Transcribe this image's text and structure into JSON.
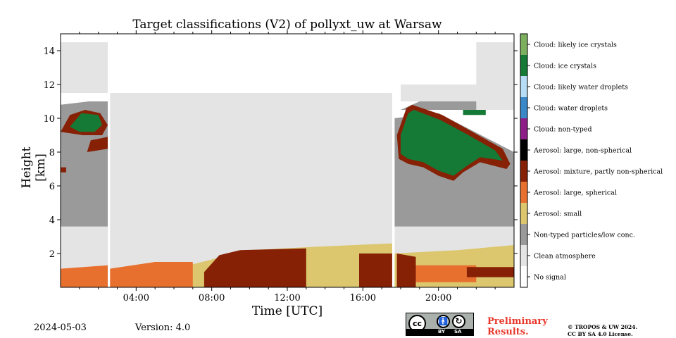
{
  "chart_data": {
    "type": "heatmap",
    "title": "Target classifications (V2) of pollyxt_uw at Warsaw",
    "xlabel": "Time [UTC]",
    "ylabel": "Height [km]",
    "x_unit": "hours UTC",
    "xlim": [
      0,
      24
    ],
    "ylim": [
      0,
      15
    ],
    "xticks": [
      {
        "value": 4,
        "label": "04:00"
      },
      {
        "value": 8,
        "label": "08:00"
      },
      {
        "value": 12,
        "label": "12:00"
      },
      {
        "value": 16,
        "label": "16:00"
      },
      {
        "value": 20,
        "label": "20:00"
      }
    ],
    "yticks": [
      2,
      4,
      6,
      8,
      10,
      12,
      14
    ],
    "grid": false,
    "legend_placement": "right colorbar",
    "classes": [
      {
        "label": "No signal",
        "color": "#ffffff"
      },
      {
        "label": "Clean atmosphere",
        "color": "#e4e4e4"
      },
      {
        "label": "Non-typed particles/low conc.",
        "color": "#9a9a9a"
      },
      {
        "label": "Aerosol: small",
        "color": "#dcc76f"
      },
      {
        "label": "Aerosol: large, spherical",
        "color": "#e8702f"
      },
      {
        "label": "Aerosol: mixture, partly non-spherical",
        "color": "#862106"
      },
      {
        "label": "Aerosol: large, non-spherical",
        "color": "#000000"
      },
      {
        "label": "Cloud: non-typed",
        "color": "#8e1e87"
      },
      {
        "label": "Cloud: water droplets",
        "color": "#3a88c8"
      },
      {
        "label": "Cloud: likely water droplets",
        "color": "#b7dcf5"
      },
      {
        "label": "Cloud: ice crystals",
        "color": "#157a35"
      },
      {
        "label": "Cloud: likely ice crystals",
        "color": "#7cb05e"
      }
    ],
    "regions": [
      {
        "class": "Non-typed particles/low conc.",
        "points": [
          [
            0,
            0.3
          ],
          [
            24,
            0.3
          ],
          [
            24,
            8
          ],
          [
            20,
            10.3
          ],
          [
            17.6,
            10
          ],
          [
            17.6,
            0.3
          ]
        ]
      },
      {
        "class": "Non-typed particles/low conc.",
        "points": [
          [
            0,
            0.3
          ],
          [
            2.5,
            0.3
          ],
          [
            2.5,
            11
          ],
          [
            1.5,
            11
          ],
          [
            0,
            10.8
          ]
        ]
      },
      {
        "class": "Non-typed particles/low conc.",
        "points": [
          [
            2.6,
            3.5
          ],
          [
            4,
            3.5
          ],
          [
            3.4,
            5
          ],
          [
            2.6,
            7
          ]
        ]
      },
      {
        "class": "Non-typed particles/low conc.",
        "points": [
          [
            18,
            10.5
          ],
          [
            24,
            10.5
          ],
          [
            24,
            11
          ],
          [
            19,
            11
          ]
        ]
      },
      {
        "class": "Clean atmosphere",
        "points": [
          [
            0,
            2.0
          ],
          [
            24,
            2.0
          ],
          [
            24,
            3.6
          ],
          [
            0,
            3.6
          ]
        ]
      },
      {
        "class": "Clean atmosphere",
        "points": [
          [
            0,
            0.8
          ],
          [
            24,
            0.8
          ],
          [
            24,
            2.6
          ],
          [
            0,
            2.6
          ]
        ]
      },
      {
        "class": "Clean atmosphere",
        "points": [
          [
            2.6,
            3.5
          ],
          [
            17.6,
            3.5
          ],
          [
            17.6,
            11.5
          ],
          [
            2.6,
            11.5
          ]
        ]
      },
      {
        "class": "Clean atmosphere",
        "points": [
          [
            0,
            11.5
          ],
          [
            2.5,
            11.5
          ],
          [
            2.5,
            14.5
          ],
          [
            0,
            14.5
          ]
        ]
      },
      {
        "class": "Clean atmosphere",
        "points": [
          [
            18,
            11
          ],
          [
            22,
            11
          ],
          [
            22,
            12
          ],
          [
            18,
            12
          ]
        ]
      },
      {
        "class": "Clean atmosphere",
        "points": [
          [
            22,
            10.5
          ],
          [
            24,
            10.5
          ],
          [
            24,
            14.5
          ],
          [
            22,
            14.5
          ]
        ]
      },
      {
        "class": "Aerosol: small",
        "points": [
          [
            6.4,
            0
          ],
          [
            17.6,
            0
          ],
          [
            17.6,
            2.6
          ],
          [
            13.5,
            2.4
          ],
          [
            10,
            2.2
          ],
          [
            6.4,
            1.2
          ]
        ]
      },
      {
        "class": "Aerosol: small",
        "points": [
          [
            17.6,
            0
          ],
          [
            24,
            0
          ],
          [
            24,
            2.5
          ],
          [
            21,
            2.2
          ],
          [
            17.6,
            2.0
          ]
        ]
      },
      {
        "class": "Aerosol: large, spherical",
        "points": [
          [
            0,
            0
          ],
          [
            2.5,
            0
          ],
          [
            2.5,
            1.3
          ],
          [
            1.2,
            1.2
          ],
          [
            0,
            1.1
          ]
        ]
      },
      {
        "class": "Aerosol: large, spherical",
        "points": [
          [
            2.6,
            0
          ],
          [
            7.0,
            0
          ],
          [
            7.0,
            1.5
          ],
          [
            5,
            1.5
          ],
          [
            2.6,
            1.1
          ]
        ]
      },
      {
        "class": "Aerosol: large, spherical",
        "points": [
          [
            18.5,
            0.3
          ],
          [
            22,
            0.3
          ],
          [
            22,
            1.3
          ],
          [
            18.5,
            1.3
          ]
        ]
      },
      {
        "class": "Aerosol: mixture, partly non-spherical",
        "points": [
          [
            7.6,
            0
          ],
          [
            13.0,
            0
          ],
          [
            13.0,
            2.3
          ],
          [
            9.5,
            2.2
          ],
          [
            8.4,
            1.9
          ],
          [
            7.6,
            0.9
          ]
        ]
      },
      {
        "class": "Aerosol: mixture, partly non-spherical",
        "points": [
          [
            15.8,
            0
          ],
          [
            17.6,
            0
          ],
          [
            17.6,
            2.0
          ],
          [
            15.8,
            2.0
          ]
        ]
      },
      {
        "class": "Aerosol: mixture, partly non-spherical",
        "points": [
          [
            17.8,
            0
          ],
          [
            18.8,
            0
          ],
          [
            18.8,
            1.8
          ],
          [
            17.8,
            2.0
          ]
        ]
      },
      {
        "class": "Aerosol: mixture, partly non-spherical",
        "points": [
          [
            21.5,
            0.6
          ],
          [
            24,
            0.6
          ],
          [
            24,
            1.2
          ],
          [
            21.5,
            1.2
          ]
        ]
      },
      {
        "class": "Aerosol: mixture, partly non-spherical",
        "points": [
          [
            0,
            9.2
          ],
          [
            0.5,
            10.2
          ],
          [
            1.3,
            10.5
          ],
          [
            2.1,
            10.3
          ],
          [
            2.5,
            9.6
          ],
          [
            2.2,
            9.0
          ],
          [
            1.2,
            9.0
          ]
        ]
      },
      {
        "class": "Aerosol: mixture, partly non-spherical",
        "points": [
          [
            1.4,
            8.0
          ],
          [
            2.5,
            8.2
          ],
          [
            2.5,
            8.9
          ],
          [
            1.6,
            8.7
          ]
        ]
      },
      {
        "class": "Aerosol: mixture, partly non-spherical",
        "points": [
          [
            0,
            6.8
          ],
          [
            0.3,
            6.8
          ],
          [
            0.3,
            7.1
          ],
          [
            0,
            7.1
          ]
        ]
      },
      {
        "class": "Aerosol: mixture, partly non-spherical",
        "points": [
          [
            18.6,
            10.8
          ],
          [
            20.2,
            10.2
          ],
          [
            21.8,
            9.2
          ],
          [
            23.4,
            8.2
          ],
          [
            23.8,
            7.3
          ],
          [
            23.6,
            7.0
          ],
          [
            22.2,
            7.4
          ],
          [
            21.3,
            6.8
          ],
          [
            20.8,
            6.3
          ],
          [
            20,
            6.6
          ],
          [
            19.2,
            7.1
          ],
          [
            18.4,
            7.3
          ],
          [
            17.9,
            7.6
          ],
          [
            17.8,
            9.0
          ],
          [
            18.3,
            10.6
          ]
        ]
      },
      {
        "class": "Cloud: ice crystals",
        "points": [
          [
            18.7,
            10.5
          ],
          [
            20.1,
            9.9
          ],
          [
            21.6,
            9.0
          ],
          [
            23,
            8.1
          ],
          [
            23.4,
            7.5
          ],
          [
            22.2,
            7.7
          ],
          [
            21.4,
            7.1
          ],
          [
            20.8,
            6.6
          ],
          [
            20,
            6.9
          ],
          [
            19.2,
            7.4
          ],
          [
            18.4,
            7.6
          ],
          [
            18.0,
            7.9
          ],
          [
            18.0,
            9.0
          ],
          [
            18.4,
            10.3
          ]
        ]
      },
      {
        "class": "Cloud: ice crystals",
        "points": [
          [
            0.5,
            9.5
          ],
          [
            1.1,
            10.3
          ],
          [
            2.0,
            10.2
          ],
          [
            2.2,
            9.6
          ],
          [
            1.8,
            9.2
          ],
          [
            1.0,
            9.2
          ]
        ]
      },
      {
        "class": "Cloud: ice crystals",
        "points": [
          [
            21.3,
            10.2
          ],
          [
            22.5,
            10.2
          ],
          [
            22.5,
            10.5
          ],
          [
            21.3,
            10.5
          ]
        ]
      }
    ],
    "gaps": [
      {
        "x_start": 2.5,
        "x_end": 2.62
      },
      {
        "x_start": 17.55,
        "x_end": 17.68
      }
    ]
  },
  "footer": {
    "date": "2024-05-03",
    "version": "Version: 4.0",
    "preliminary_line1": "Preliminary",
    "preliminary_line2": "Results.",
    "copyright_line1": "© TROPOS & UW 2024.",
    "copyright_line2": "CC BY SA 4.0 License.",
    "cc_text": "cc",
    "cc_by": "BY",
    "cc_sa": "SA"
  }
}
